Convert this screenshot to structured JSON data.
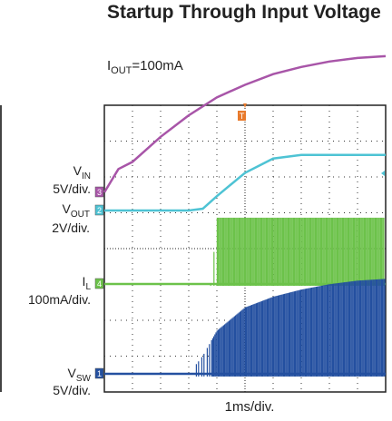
{
  "page": {
    "title": "Startup Through Input Voltage",
    "subtitle_prefix": "I",
    "subtitle_sub": "OUT",
    "subtitle_value": "=100mA"
  },
  "labels": {
    "vin_name": "V",
    "vin_sub": "IN",
    "vin_scale": "5V/div.",
    "vout_name": "V",
    "vout_sub": "OUT",
    "vout_scale": "2V/div.",
    "il_name": "I",
    "il_sub": "L",
    "il_scale": "100mA/div.",
    "vsw_name": "V",
    "vsw_sub": "SW",
    "vsw_scale": "5V/div.",
    "timebase": "1ms/div."
  },
  "chart_data": {
    "type": "line",
    "grid": true,
    "x_divisions": 10,
    "y_divisions": 8,
    "trigger_marker": "T",
    "series": [
      {
        "name": "VIN",
        "channel": "3",
        "scale": "5V/div.",
        "color": "#a855a8",
        "x": [
          0,
          0.5,
          1,
          2,
          3,
          4,
          5,
          6,
          7,
          8,
          9,
          10
        ],
        "y": [
          0.55,
          1.2,
          1.4,
          2.1,
          2.7,
          3.2,
          3.55,
          3.85,
          4.05,
          4.2,
          4.3,
          4.35
        ]
      },
      {
        "name": "VOUT",
        "channel": "2",
        "scale": "2V/div.",
        "color": "#4ec3d4",
        "x": [
          0,
          1,
          2,
          3,
          3.5,
          4,
          5,
          6,
          7,
          8,
          9,
          10
        ],
        "y": [
          0,
          0,
          0,
          0,
          0.05,
          0.4,
          1.05,
          1.45,
          1.55,
          1.55,
          1.55,
          1.55
        ]
      },
      {
        "name": "IL",
        "channel": "4",
        "scale": "100mA/div.",
        "color": "#6cc24a",
        "x": [
          0,
          3,
          3.8,
          4,
          5,
          6,
          7,
          8,
          9,
          10
        ],
        "y": [
          0,
          0,
          0,
          1.85,
          1.85,
          1.85,
          1.85,
          1.85,
          1.85,
          1.85
        ]
      },
      {
        "name": "VSW",
        "channel": "1",
        "scale": "5V/div.",
        "color": "#2450a0",
        "x": [
          0,
          3,
          3.5,
          4,
          5,
          6,
          7,
          8,
          9,
          10
        ],
        "y": [
          0,
          0,
          0.5,
          1.2,
          1.85,
          2.15,
          2.35,
          2.5,
          2.6,
          2.65
        ]
      }
    ]
  }
}
